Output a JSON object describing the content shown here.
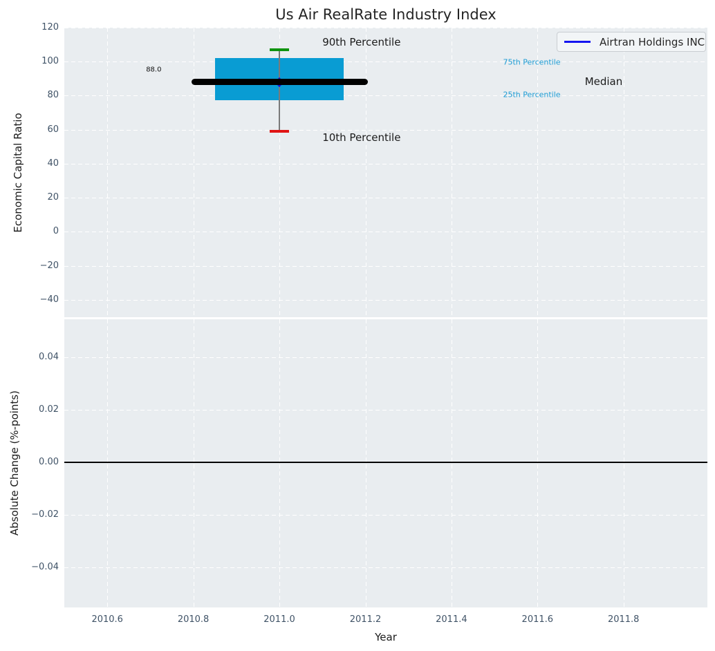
{
  "title": "Us Air RealRate Industry Index",
  "legend": {
    "label": "Airtran Holdings INC",
    "line_color": "#1414f0"
  },
  "colors": {
    "plot_bg": "#e9edf0",
    "grid": "#ffffff",
    "box_fill": "#099cd3",
    "median_line": "#000000",
    "median_marker": "#1212d9",
    "whisker": "#7a7a7a",
    "cap_top": "#0e930e",
    "cap_bottom": "#e01414",
    "tick_label": "#3f5266",
    "axis_label": "#1b1b1b",
    "percentile_label": "#1e9cd4",
    "zero_line": "#000000"
  },
  "chart_data": [
    {
      "type": "box",
      "title": "Us Air RealRate Industry Index",
      "ylabel": "Economic Capital Ratio",
      "xlim": [
        2010.5,
        2011.995
      ],
      "ylim": [
        -50.3,
        120
      ],
      "yticks": [
        120,
        100,
        80,
        60,
        40,
        20,
        0,
        -20,
        -40
      ],
      "ytick_labels": [
        "120",
        "100",
        "80",
        "60",
        "40",
        "20",
        "0",
        "−20",
        "−40"
      ],
      "xticks": [
        2010.6,
        2010.8,
        2011.0,
        2011.2,
        2011.4,
        2011.6,
        2011.8
      ],
      "grid": true,
      "legend_position": "upper right",
      "box": {
        "x": 2011.0,
        "p10": 59.0,
        "p25": 77.5,
        "median": 88.0,
        "p75": 102.0,
        "p90": 107.0,
        "median_label": "88.0",
        "box_halfwidth": 0.15,
        "median_halfwidth": 0.205,
        "cap_halfwidth": 0.022
      },
      "annotations": [
        {
          "text": "88.0",
          "x": 2010.69,
          "y": 95.3,
          "size": 10,
          "color": "#111111"
        },
        {
          "text": "90th Percentile",
          "x": 2011.1,
          "y": 111.5,
          "size": 15,
          "color": "#1b1b1b"
        },
        {
          "text": "10th Percentile",
          "x": 2011.1,
          "y": 55.3,
          "size": 15,
          "color": "#1b1b1b"
        },
        {
          "text": "75th Percentile",
          "x": 2011.52,
          "y": 99.8,
          "size": 11,
          "color": "#1e9cd4"
        },
        {
          "text": "25th Percentile",
          "x": 2011.52,
          "y": 80.5,
          "size": 11,
          "color": "#1e9cd4"
        },
        {
          "text": "Median",
          "x": 2011.71,
          "y": 88.2,
          "size": 15,
          "color": "#1b1b1b"
        }
      ]
    },
    {
      "type": "line",
      "ylabel": "Absolute Change (%-points)",
      "xlabel": "Year",
      "xlim": [
        2010.5,
        2011.995
      ],
      "ylim": [
        -0.0551,
        0.0543
      ],
      "yticks": [
        0.04,
        0.02,
        0,
        -0.02,
        -0.04
      ],
      "ytick_labels": [
        "0.04",
        "0.02",
        "0.00",
        "−0.02",
        "−0.04"
      ],
      "xticks": [
        2010.6,
        2010.8,
        2011.0,
        2011.2,
        2011.4,
        2011.6,
        2011.8
      ],
      "xtick_labels": [
        "2010.6",
        "2010.8",
        "2011.0",
        "2011.2",
        "2011.4",
        "2011.6",
        "2011.8"
      ],
      "zero_line": 0.0,
      "grid": true
    }
  ]
}
